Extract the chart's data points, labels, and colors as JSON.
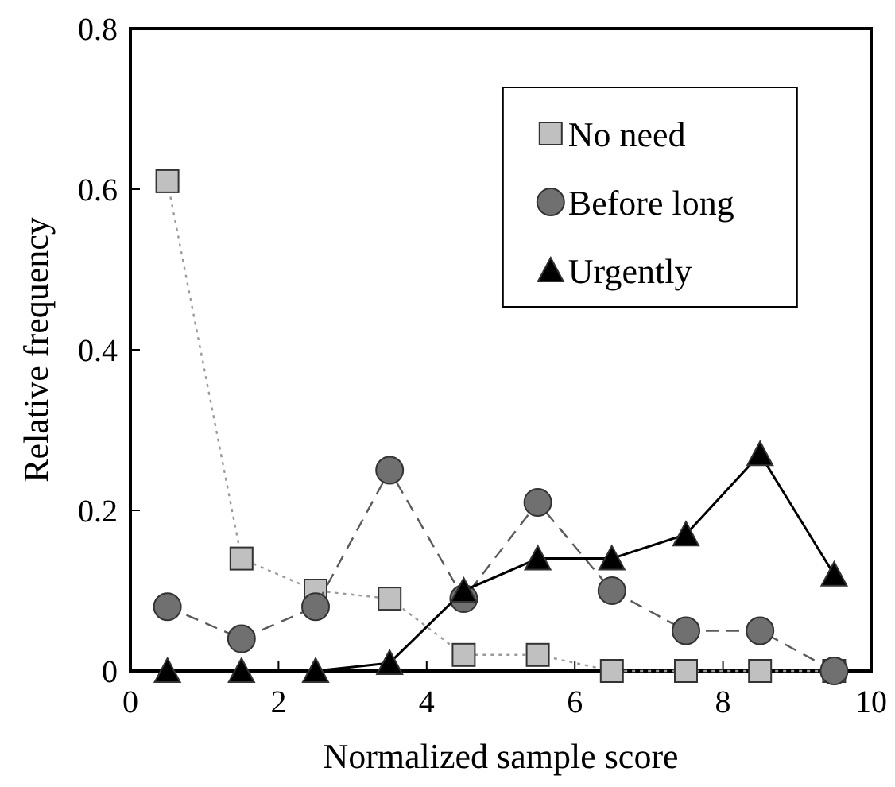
{
  "chart_data": {
    "type": "line",
    "xlabel": "Normalized sample score",
    "ylabel": "Relative frequency",
    "x": [
      0.5,
      1.5,
      2.5,
      3.5,
      4.5,
      5.5,
      6.5,
      7.5,
      8.5,
      9.5
    ],
    "xlim": [
      0,
      10
    ],
    "xticks": [
      0,
      2,
      4,
      6,
      8,
      10
    ],
    "ylim": [
      0,
      0.8
    ],
    "yticks": [
      0,
      0.2,
      0.4,
      0.6,
      0.8
    ],
    "legend": "top right",
    "series": [
      {
        "name": "No need",
        "color": "#c0c0c0",
        "marker": "square",
        "line_style": "dotted",
        "values": [
          0.61,
          0.14,
          0.1,
          0.09,
          0.02,
          0.02,
          0,
          0,
          0,
          0
        ]
      },
      {
        "name": "Before long",
        "color": "#707070",
        "marker": "circle",
        "line_style": "dashed",
        "values": [
          0.08,
          0.04,
          0.08,
          0.25,
          0.09,
          0.21,
          0.1,
          0.05,
          0.05,
          0
        ]
      },
      {
        "name": "Urgently",
        "color": "#000000",
        "marker": "triangle",
        "line_style": "solid",
        "values": [
          0,
          0,
          0,
          0.01,
          0.1,
          0.14,
          0.14,
          0.17,
          0.27,
          0.12
        ]
      }
    ]
  }
}
